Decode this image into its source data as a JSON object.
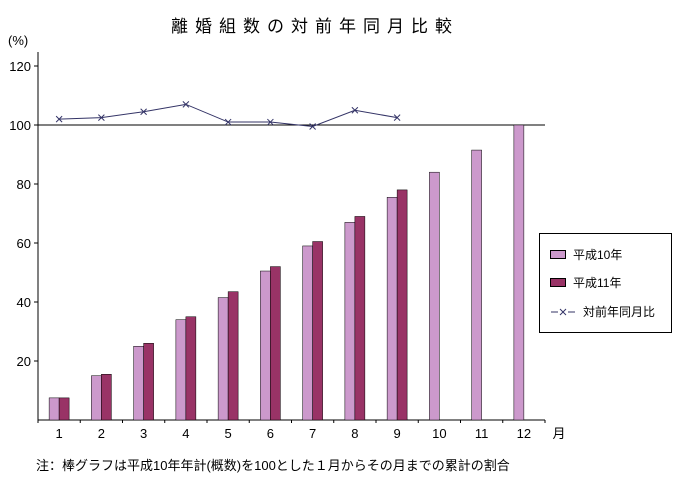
{
  "chart_data": {
    "type": "bar",
    "title": "離婚組数の対前年同月比較",
    "unit_label": "(%)",
    "xlabel": "月",
    "note": "注：棒グラフは平成10年年計(概数)を100とした１月からその月までの累計の割合",
    "categories": [
      "1",
      "2",
      "3",
      "4",
      "5",
      "6",
      "7",
      "8",
      "9",
      "10",
      "11",
      "12"
    ],
    "ylim": [
      0,
      120
    ],
    "yticks": [
      20,
      40,
      60,
      80,
      100,
      120
    ],
    "reference_line": 100,
    "legend_position": "right",
    "axis_color": "#000000",
    "series": [
      {
        "id": "heisei10",
        "name": "平成10年",
        "type": "bar",
        "color": "#cc99cc",
        "values": [
          7.5,
          15,
          25,
          34,
          41.5,
          50.5,
          59,
          67,
          75.5,
          84,
          91.5,
          100
        ]
      },
      {
        "id": "heisei11",
        "name": "平成11年",
        "type": "bar",
        "color": "#993366",
        "values": [
          7.5,
          15.5,
          26,
          35,
          43.5,
          52,
          60.5,
          69,
          78,
          null,
          null,
          null
        ]
      },
      {
        "id": "ratio",
        "name": "対前年同月比",
        "type": "line",
        "color": "#333366",
        "values": [
          102,
          102.5,
          104.5,
          107,
          101,
          101,
          99.5,
          105,
          102.5,
          null,
          null,
          null
        ]
      }
    ]
  }
}
